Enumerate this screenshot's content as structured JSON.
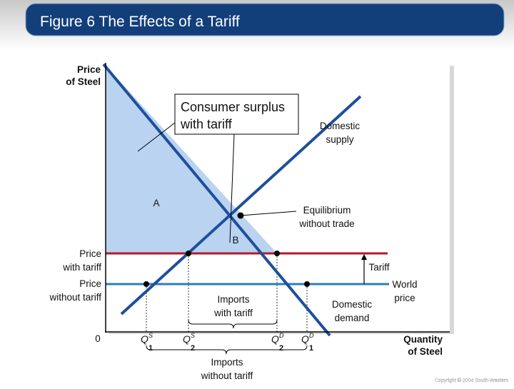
{
  "title": "Figure 6 The Effects of a Tariff",
  "axes": {
    "y_label": [
      "Price",
      "of Steel"
    ],
    "x_label": [
      "Quantity",
      "of Steel"
    ],
    "origin": "0"
  },
  "callout": [
    "Consumer surplus",
    "with tariff"
  ],
  "curves": {
    "supply": [
      "Domestic",
      "supply"
    ],
    "demand": [
      "Domestic",
      "demand"
    ]
  },
  "equilibrium": [
    "Equilibrium",
    "without trade"
  ],
  "areas": {
    "a": "A",
    "b": "B"
  },
  "prices": {
    "with_tariff": [
      "Price",
      "with tariff"
    ],
    "without_tariff": [
      "Price",
      "without tariff"
    ],
    "world": [
      "World",
      "price"
    ],
    "tariff": "Tariff"
  },
  "quantities": [
    {
      "letter": "Q",
      "sup": "S",
      "sub": "1"
    },
    {
      "letter": "Q",
      "sup": "S",
      "sub": "2"
    },
    {
      "letter": "Q",
      "sup": "D",
      "sub": "2"
    },
    {
      "letter": "Q",
      "sup": "D",
      "sub": "1"
    }
  ],
  "imports": {
    "with_tariff": [
      "Imports",
      "with tariff"
    ],
    "without_tariff": [
      "Imports",
      "without tariff"
    ]
  },
  "copyright": "Copyright © 2004 South-Western"
}
